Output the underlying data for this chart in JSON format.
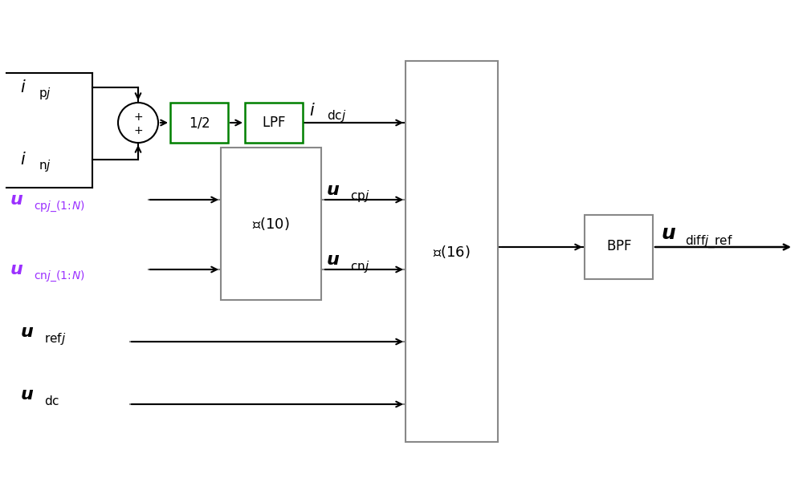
{
  "bg_color": "#ffffff",
  "line_color": "#000000",
  "gray_color": "#888888",
  "purple_color": "#9B30FF",
  "green_color": "#008000",
  "figsize": [
    10.0,
    5.96
  ],
  "dpi": 100,
  "xlim": [
    0,
    10
  ],
  "ylim": [
    0,
    5.96
  ]
}
